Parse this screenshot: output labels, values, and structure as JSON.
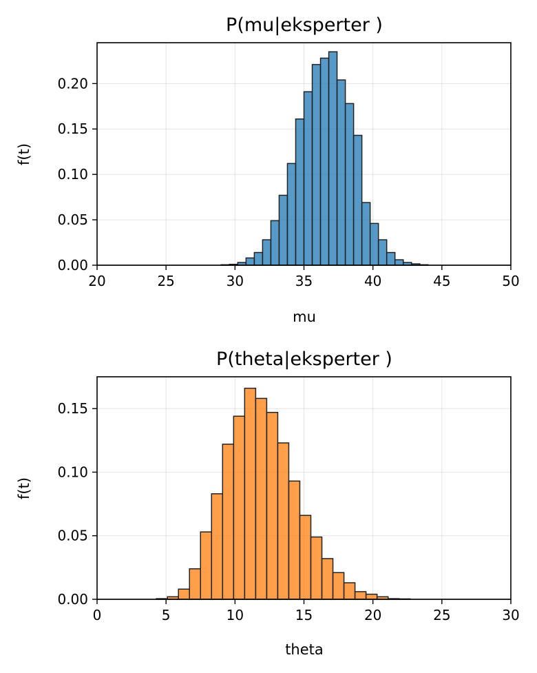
{
  "chart_data": [
    {
      "type": "bar",
      "title": "P(mu|eksperter )",
      "xlabel": "mu",
      "ylabel": "f(t)",
      "xlim": [
        20,
        50
      ],
      "ylim": [
        0,
        0.245
      ],
      "xticks": [
        "20",
        "25",
        "30",
        "35",
        "40",
        "45",
        "50"
      ],
      "yticks": [
        "0.00",
        "0.05",
        "0.10",
        "0.15",
        "0.20"
      ],
      "grid": true,
      "color": "#1f77b4",
      "bin_start": 29.0,
      "bin_width": 0.6,
      "values": [
        0.0005,
        0.001,
        0.003,
        0.008,
        0.014,
        0.028,
        0.049,
        0.077,
        0.112,
        0.161,
        0.191,
        0.221,
        0.228,
        0.235,
        0.204,
        0.178,
        0.143,
        0.069,
        0.046,
        0.028,
        0.014,
        0.006,
        0.003,
        0.0015,
        0.0005
      ]
    },
    {
      "type": "bar",
      "title": "P(theta|eksperter )",
      "xlabel": "theta",
      "ylabel": "f(t)",
      "xlim": [
        0,
        30
      ],
      "ylim": [
        0,
        0.175
      ],
      "xticks": [
        "0",
        "5",
        "10",
        "15",
        "20",
        "25",
        "30"
      ],
      "yticks": [
        "0.00",
        "0.05",
        "0.10",
        "0.15"
      ],
      "grid": true,
      "color": "#ff7f0e",
      "bin_start": 4.3,
      "bin_width": 0.8,
      "values": [
        0.0005,
        0.002,
        0.008,
        0.024,
        0.053,
        0.083,
        0.122,
        0.144,
        0.166,
        0.158,
        0.147,
        0.123,
        0.093,
        0.066,
        0.049,
        0.032,
        0.021,
        0.013,
        0.006,
        0.004,
        0.002,
        0.0005,
        0.0003
      ]
    }
  ]
}
